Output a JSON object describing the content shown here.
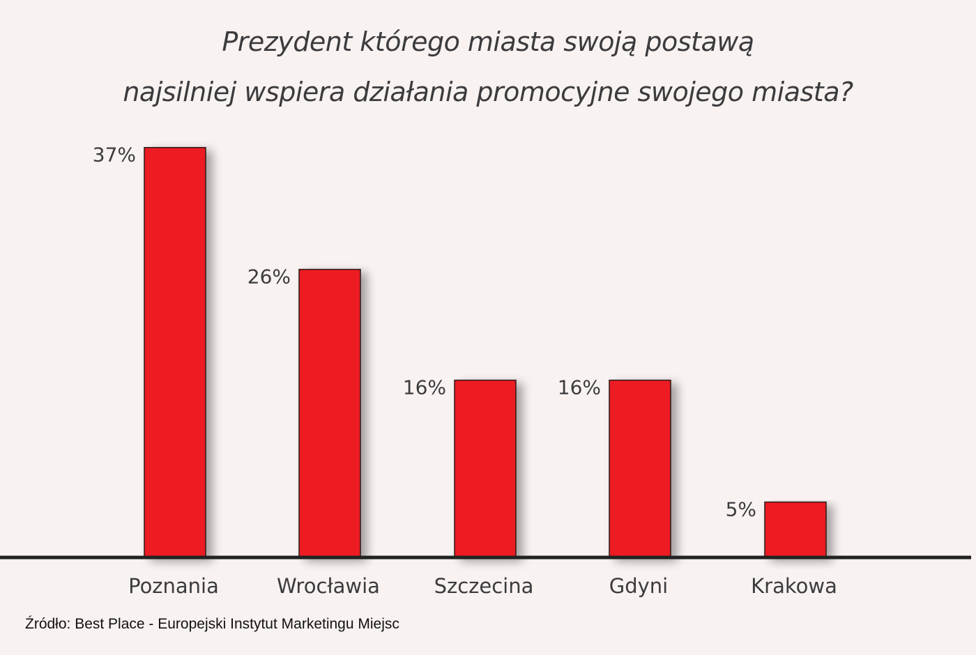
{
  "title": {
    "line1": "Prezydent którego miasta swoją postawą",
    "line2": "najsilniej wspiera działania promocyjne swojego miasta?"
  },
  "source": "Źródło: Best Place - Europejski Instytut Marketingu Miejsc",
  "colors": {
    "bar": "#ec1c24",
    "axis": "#222222",
    "label": "#3b3b3d",
    "background": "#f8f2f1"
  },
  "chart_data": {
    "type": "bar",
    "title": "Prezydent którego miasta swoją postawą najsilniej wspiera działania promocyjne swojego miasta?",
    "categories": [
      "Poznania",
      "Wrocławia",
      "Szczecina",
      "Gdyni",
      "Krakowa"
    ],
    "values": [
      37,
      26,
      16,
      16,
      5
    ],
    "value_labels": [
      "37%",
      "26%",
      "16%",
      "16%",
      "5%"
    ],
    "unit": "%",
    "grid": false,
    "legend": "none"
  }
}
